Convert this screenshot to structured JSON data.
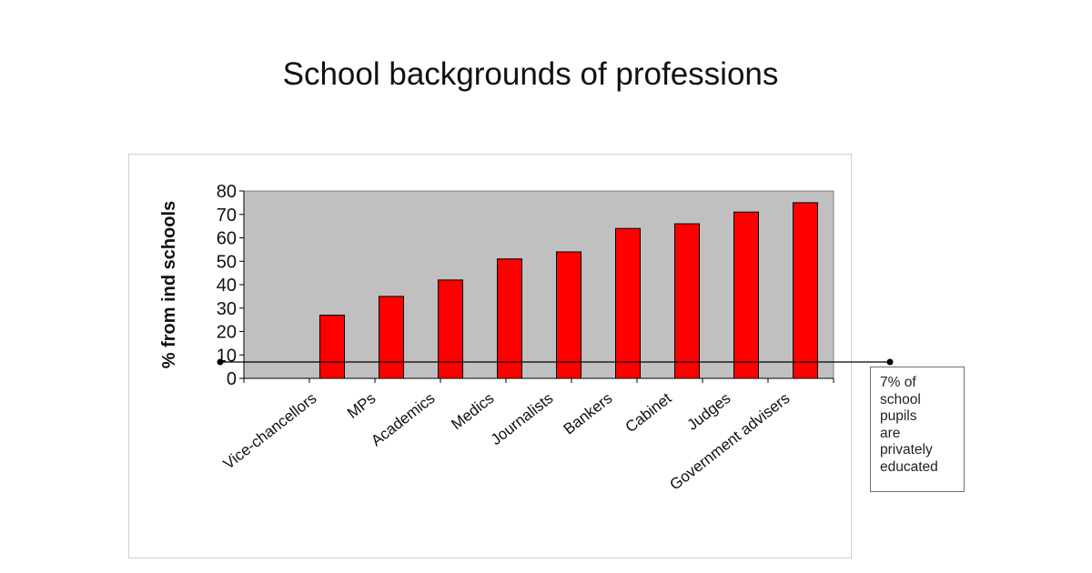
{
  "chart_data": {
    "type": "bar",
    "title": "School backgrounds of professions",
    "xlabel": "",
    "ylabel": "% from ind schools",
    "categories": [
      "Vice-chancellors",
      "MPs",
      "Academics",
      "Medics",
      "Journalists",
      "Bankers",
      "Cabinet",
      "Judges",
      "Government advisers"
    ],
    "values": [
      27,
      35,
      42,
      51,
      54,
      64,
      66,
      71,
      75
    ],
    "ylim": [
      0,
      80
    ],
    "yticks": [
      0,
      10,
      20,
      30,
      40,
      50,
      60,
      70,
      80
    ],
    "grid": false,
    "bar_color": "#ff0000",
    "plot_background": "#c0c0c0",
    "reference_line": {
      "value": 7,
      "label": "7% of\nschool\npupils\nare\nprivately\neducated"
    }
  }
}
